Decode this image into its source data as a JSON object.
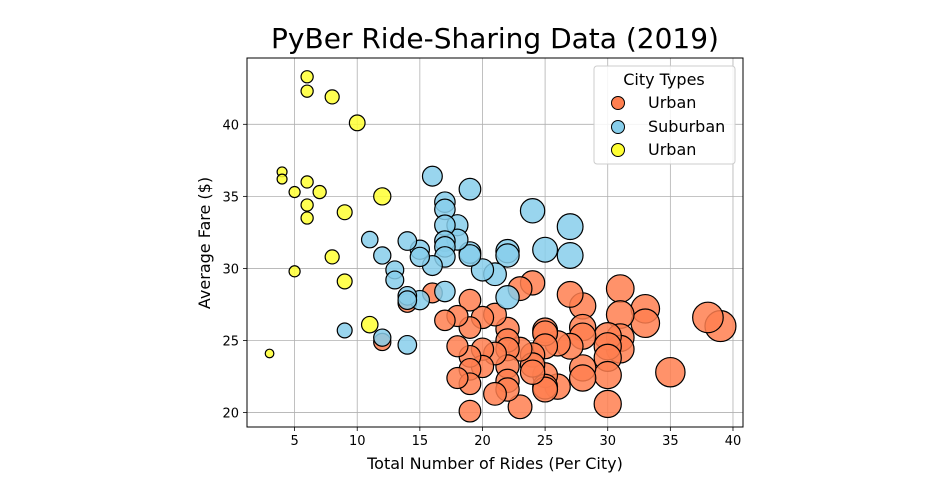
{
  "chart_data": {
    "type": "scatter",
    "title": "PyBer Ride-Sharing Data (2019)",
    "xlabel": "Total Number of Rides (Per City)",
    "ylabel": "Average Fare ($)",
    "xlim": [
      1.2,
      40.8
    ],
    "ylim": [
      19.0,
      44.6
    ],
    "xticks": [
      5,
      10,
      15,
      20,
      25,
      30,
      35,
      40
    ],
    "yticks": [
      20,
      25,
      30,
      35,
      40
    ],
    "grid": true,
    "legend": {
      "title": "City Types",
      "placement": "top-right",
      "entries": [
        "Urban",
        "Suburban",
        "Urban"
      ]
    },
    "series": [
      {
        "name": "Urban",
        "color": "#FF7F50",
        "points": [
          {
            "x": 39,
            "y": 26.0,
            "s": 39
          },
          {
            "x": 38,
            "y": 26.6,
            "s": 38
          },
          {
            "x": 35,
            "y": 22.8,
            "s": 35
          },
          {
            "x": 33,
            "y": 27.2,
            "s": 33
          },
          {
            "x": 33,
            "y": 26.2,
            "s": 33
          },
          {
            "x": 31,
            "y": 28.6,
            "s": 31
          },
          {
            "x": 31,
            "y": 26.8,
            "s": 31
          },
          {
            "x": 31,
            "y": 25.2,
            "s": 31
          },
          {
            "x": 31,
            "y": 24.4,
            "s": 31
          },
          {
            "x": 30,
            "y": 25.3,
            "s": 30
          },
          {
            "x": 30,
            "y": 24.6,
            "s": 30
          },
          {
            "x": 30,
            "y": 23.8,
            "s": 30
          },
          {
            "x": 30,
            "y": 22.6,
            "s": 30
          },
          {
            "x": 30,
            "y": 20.6,
            "s": 30
          },
          {
            "x": 28,
            "y": 27.4,
            "s": 28
          },
          {
            "x": 28,
            "y": 25.9,
            "s": 28
          },
          {
            "x": 28,
            "y": 25.3,
            "s": 28
          },
          {
            "x": 28,
            "y": 23.1,
            "s": 28
          },
          {
            "x": 28,
            "y": 22.4,
            "s": 28
          },
          {
            "x": 27,
            "y": 28.2,
            "s": 27
          },
          {
            "x": 27,
            "y": 24.6,
            "s": 27
          },
          {
            "x": 26,
            "y": 24.8,
            "s": 26
          },
          {
            "x": 26,
            "y": 21.8,
            "s": 26
          },
          {
            "x": 25,
            "y": 25.7,
            "s": 25
          },
          {
            "x": 25,
            "y": 25.5,
            "s": 25
          },
          {
            "x": 25,
            "y": 24.6,
            "s": 25
          },
          {
            "x": 25,
            "y": 22.6,
            "s": 25
          },
          {
            "x": 25,
            "y": 21.8,
            "s": 25
          },
          {
            "x": 25,
            "y": 21.6,
            "s": 25
          },
          {
            "x": 24,
            "y": 29.0,
            "s": 24
          },
          {
            "x": 24,
            "y": 24.0,
            "s": 24
          },
          {
            "x": 24,
            "y": 23.3,
            "s": 24
          },
          {
            "x": 24,
            "y": 22.8,
            "s": 24
          },
          {
            "x": 23,
            "y": 28.6,
            "s": 23
          },
          {
            "x": 23,
            "y": 24.4,
            "s": 23
          },
          {
            "x": 23,
            "y": 20.4,
            "s": 23
          },
          {
            "x": 22,
            "y": 25.8,
            "s": 22
          },
          {
            "x": 22,
            "y": 25.0,
            "s": 22
          },
          {
            "x": 22,
            "y": 24.4,
            "s": 22
          },
          {
            "x": 22,
            "y": 23.2,
            "s": 22
          },
          {
            "x": 22,
            "y": 22.2,
            "s": 22
          },
          {
            "x": 22,
            "y": 21.6,
            "s": 22
          },
          {
            "x": 21,
            "y": 26.8,
            "s": 21
          },
          {
            "x": 21,
            "y": 24.1,
            "s": 21
          },
          {
            "x": 21,
            "y": 21.3,
            "s": 21
          },
          {
            "x": 20,
            "y": 26.6,
            "s": 20
          },
          {
            "x": 20,
            "y": 24.4,
            "s": 20
          },
          {
            "x": 20,
            "y": 23.2,
            "s": 20
          },
          {
            "x": 19,
            "y": 27.8,
            "s": 19
          },
          {
            "x": 19,
            "y": 25.9,
            "s": 19
          },
          {
            "x": 19,
            "y": 23.9,
            "s": 19
          },
          {
            "x": 19,
            "y": 23.0,
            "s": 19
          },
          {
            "x": 19,
            "y": 22.0,
            "s": 19
          },
          {
            "x": 19,
            "y": 20.1,
            "s": 19
          },
          {
            "x": 18,
            "y": 26.7,
            "s": 18
          },
          {
            "x": 18,
            "y": 24.6,
            "s": 18
          },
          {
            "x": 18,
            "y": 22.4,
            "s": 18
          },
          {
            "x": 17,
            "y": 26.4,
            "s": 17
          },
          {
            "x": 16,
            "y": 28.3,
            "s": 16
          },
          {
            "x": 14,
            "y": 27.6,
            "s": 14
          },
          {
            "x": 12,
            "y": 24.9,
            "s": 12
          }
        ]
      },
      {
        "name": "Suburban",
        "color": "#87CEEB",
        "points": [
          {
            "x": 27,
            "y": 32.9,
            "s": 27
          },
          {
            "x": 27,
            "y": 30.9,
            "s": 27
          },
          {
            "x": 25,
            "y": 31.3,
            "s": 25
          },
          {
            "x": 24,
            "y": 34.0,
            "s": 24
          },
          {
            "x": 22,
            "y": 31.2,
            "s": 22
          },
          {
            "x": 22,
            "y": 30.9,
            "s": 22
          },
          {
            "x": 22,
            "y": 28.0,
            "s": 22
          },
          {
            "x": 21,
            "y": 29.6,
            "s": 21
          },
          {
            "x": 20,
            "y": 29.9,
            "s": 20
          },
          {
            "x": 19,
            "y": 35.5,
            "s": 19
          },
          {
            "x": 19,
            "y": 31.1,
            "s": 19
          },
          {
            "x": 19,
            "y": 30.9,
            "s": 19
          },
          {
            "x": 18,
            "y": 33.0,
            "s": 18
          },
          {
            "x": 18,
            "y": 32.0,
            "s": 18
          },
          {
            "x": 17,
            "y": 34.6,
            "s": 17
          },
          {
            "x": 17,
            "y": 34.1,
            "s": 17
          },
          {
            "x": 17,
            "y": 33.0,
            "s": 17
          },
          {
            "x": 17,
            "y": 31.9,
            "s": 17
          },
          {
            "x": 17,
            "y": 31.5,
            "s": 17
          },
          {
            "x": 17,
            "y": 30.8,
            "s": 17
          },
          {
            "x": 17,
            "y": 28.4,
            "s": 17
          },
          {
            "x": 16,
            "y": 36.4,
            "s": 16
          },
          {
            "x": 16,
            "y": 30.2,
            "s": 16
          },
          {
            "x": 15,
            "y": 31.3,
            "s": 15
          },
          {
            "x": 15,
            "y": 30.8,
            "s": 15
          },
          {
            "x": 15,
            "y": 27.8,
            "s": 15
          },
          {
            "x": 14,
            "y": 31.9,
            "s": 14
          },
          {
            "x": 14,
            "y": 28.1,
            "s": 14
          },
          {
            "x": 14,
            "y": 27.8,
            "s": 14
          },
          {
            "x": 14,
            "y": 24.7,
            "s": 14
          },
          {
            "x": 13,
            "y": 29.9,
            "s": 13
          },
          {
            "x": 13,
            "y": 29.2,
            "s": 13
          },
          {
            "x": 12,
            "y": 30.9,
            "s": 12
          },
          {
            "x": 12,
            "y": 25.2,
            "s": 12
          },
          {
            "x": 11,
            "y": 32.0,
            "s": 11
          },
          {
            "x": 9,
            "y": 25.7,
            "s": 9
          }
        ]
      },
      {
        "name": "Urban",
        "color": "#FFFF33",
        "points": [
          {
            "x": 12,
            "y": 35.0,
            "s": 12
          },
          {
            "x": 11,
            "y": 26.1,
            "s": 11
          },
          {
            "x": 10,
            "y": 40.1,
            "s": 10
          },
          {
            "x": 9,
            "y": 33.9,
            "s": 9
          },
          {
            "x": 9,
            "y": 29.1,
            "s": 9
          },
          {
            "x": 8,
            "y": 41.9,
            "s": 8
          },
          {
            "x": 8,
            "y": 30.8,
            "s": 8
          },
          {
            "x": 7,
            "y": 35.3,
            "s": 7
          },
          {
            "x": 6,
            "y": 43.3,
            "s": 6
          },
          {
            "x": 6,
            "y": 42.3,
            "s": 6
          },
          {
            "x": 6,
            "y": 36.0,
            "s": 6
          },
          {
            "x": 6,
            "y": 34.4,
            "s": 6
          },
          {
            "x": 6,
            "y": 33.5,
            "s": 6
          },
          {
            "x": 5,
            "y": 35.3,
            "s": 5
          },
          {
            "x": 5,
            "y": 29.8,
            "s": 5
          },
          {
            "x": 4,
            "y": 36.7,
            "s": 4
          },
          {
            "x": 4,
            "y": 36.2,
            "s": 4
          },
          {
            "x": 3,
            "y": 24.1,
            "s": 3
          }
        ]
      }
    ]
  }
}
